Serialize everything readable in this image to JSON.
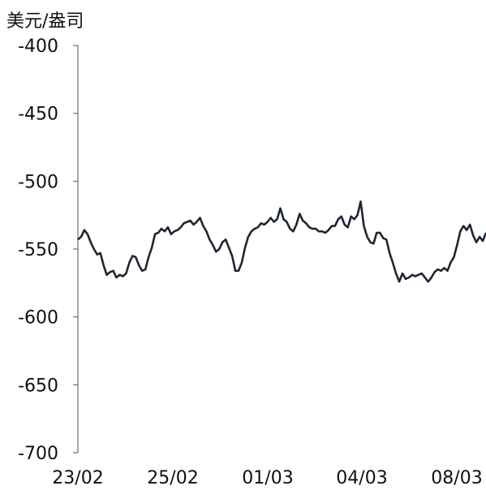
{
  "chart_data": {
    "type": "line",
    "title": "",
    "unit_label": "美元/盎司",
    "xlabel": "",
    "ylabel": "",
    "ylim": [
      -700,
      -400
    ],
    "y_ticks": [
      "-400",
      "-450",
      "-500",
      "-550",
      "-600",
      "-650",
      "-700"
    ],
    "x_ticks": [
      "23/02",
      "25/02",
      "01/03",
      "04/03",
      "08/03"
    ],
    "grid": false,
    "line_color": "#1f2633",
    "series": [
      {
        "values": [
          -543,
          -541,
          -536,
          -539,
          -545,
          -550,
          -554,
          -553,
          -562,
          -569,
          -567,
          -566,
          -571,
          -569,
          -570,
          -568,
          -560,
          -555,
          -556,
          -562,
          -566,
          -565,
          -556,
          -549,
          -539,
          -538,
          -535,
          -537,
          -534,
          -539,
          -537,
          -536,
          -534,
          -531,
          -530,
          -529,
          -532,
          -530,
          -527,
          -533,
          -537,
          -543,
          -547,
          -552,
          -550,
          -545,
          -543,
          -549,
          -555,
          -566,
          -566,
          -560,
          -549,
          -541,
          -537,
          -535,
          -534,
          -531,
          -532,
          -530,
          -527,
          -530,
          -528,
          -520,
          -528,
          -530,
          -535,
          -537,
          -532,
          -524,
          -529,
          -531,
          -534,
          -535,
          -535,
          -537,
          -537,
          -538,
          -536,
          -533,
          -533,
          -528,
          -526,
          -532,
          -534,
          -526,
          -528,
          -525,
          -515,
          -533,
          -541,
          -545,
          -546,
          -538,
          -538,
          -542,
          -543,
          -553,
          -560,
          -568,
          -574,
          -568,
          -572,
          -571,
          -569,
          -570,
          -569,
          -568,
          -571,
          -574,
          -571,
          -567,
          -565,
          -566,
          -564,
          -566,
          -560,
          -556,
          -547,
          -537,
          -533,
          -536,
          -532,
          -540,
          -545,
          -541,
          -544,
          -538
        ],
        "x_start": 0,
        "x_end": 127
      }
    ]
  }
}
